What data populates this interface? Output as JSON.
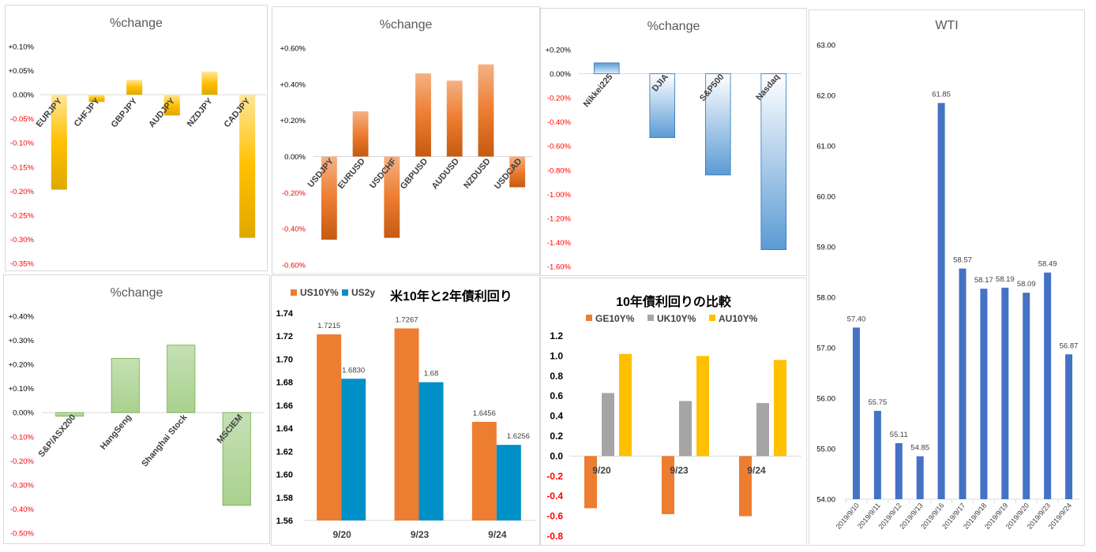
{
  "colors": {
    "gold": "#ffc000",
    "orange": "#ed7d31",
    "blue_grad": "#5b9bd5",
    "green": "#a9d18e",
    "teal": "#0090c8",
    "gray": "#a5a5a5",
    "wti_blue": "#4472c4",
    "neg_tick": "#ff0000"
  },
  "chart_data": [
    {
      "id": "jpy",
      "type": "bar",
      "title": "%change",
      "categories": [
        "EURJPY",
        "CHFJPY",
        "GBPJPY",
        "AUDJPY",
        "NZDJPY",
        "CADJPY"
      ],
      "values": [
        -0.197,
        -0.015,
        0.031,
        -0.043,
        0.048,
        -0.297
      ],
      "ylim": [
        -0.35,
        0.1
      ],
      "yticks": [
        "+0.10%",
        "+0.05%",
        "0.00%",
        "-0.05%",
        "-0.10%",
        "-0.15%",
        "-0.20%",
        "-0.25%",
        "-0.30%",
        "-0.35%"
      ],
      "tick_values": [
        0.1,
        0.05,
        0.0,
        -0.05,
        -0.1,
        -0.15,
        -0.2,
        -0.25,
        -0.3,
        -0.35
      ]
    },
    {
      "id": "usd",
      "type": "bar",
      "title": "%change",
      "categories": [
        "USDJPY",
        "EURUSD",
        "USDCHF",
        "GBPUSD",
        "AUDUSD",
        "NZDUSD",
        "USDCAD"
      ],
      "values": [
        -0.46,
        0.25,
        -0.45,
        0.46,
        0.42,
        0.51,
        -0.17
      ],
      "ylim": [
        -0.6,
        0.6
      ],
      "yticks": [
        "+0.60%",
        "+0.40%",
        "+0.20%",
        "0.00%",
        "-0.20%",
        "-0.40%",
        "-0.60%"
      ],
      "tick_values": [
        0.6,
        0.4,
        0.2,
        0.0,
        -0.2,
        -0.4,
        -0.6
      ]
    },
    {
      "id": "idx",
      "type": "bar",
      "title": "%change",
      "categories": [
        "Nikkei225",
        "DJIA",
        "S&P500",
        "Nasdaq"
      ],
      "values": [
        0.09,
        -0.53,
        -0.84,
        -1.46
      ],
      "ylim": [
        -1.6,
        0.2
      ],
      "yticks": [
        "+0.20%",
        "0.00%",
        "-0.20%",
        "-0.40%",
        "-0.60%",
        "-0.80%",
        "-1.00%",
        "-1.20%",
        "-1.40%",
        "-1.60%"
      ],
      "tick_values": [
        0.2,
        0.0,
        -0.2,
        -0.4,
        -0.6,
        -0.8,
        -1.0,
        -1.2,
        -1.4,
        -1.6
      ]
    },
    {
      "id": "asia",
      "type": "bar",
      "title": "%change",
      "categories": [
        "S&P/ASX200",
        "HangSeng",
        "Shanghai Stock",
        "MSCIEM"
      ],
      "values": [
        -0.015,
        0.225,
        0.28,
        -0.385
      ],
      "ylim": [
        -0.5,
        0.4
      ],
      "yticks": [
        "+0.40%",
        "+0.30%",
        "+0.20%",
        "+0.10%",
        "0.00%",
        "-0.10%",
        "-0.20%",
        "-0.30%",
        "-0.40%",
        "-0.50%"
      ],
      "tick_values": [
        0.4,
        0.3,
        0.2,
        0.1,
        0.0,
        -0.1,
        -0.2,
        -0.3,
        -0.4,
        -0.5
      ]
    },
    {
      "id": "us_yield",
      "type": "bar",
      "title": "米10年と2年債利回り",
      "categories": [
        "9/20",
        "9/23",
        "9/24"
      ],
      "series": [
        {
          "name": "US10Y%",
          "values": [
            1.7215,
            1.7267,
            1.6456
          ],
          "labels": [
            "1.7215",
            "1.7267",
            "1.6456"
          ]
        },
        {
          "name": "US2y",
          "values": [
            1.683,
            1.68,
            1.6256
          ],
          "labels": [
            "1.6830",
            "1.68",
            "1.6256"
          ]
        }
      ],
      "ylim": [
        1.56,
        1.74
      ],
      "yticks": [
        "1.74",
        "1.72",
        "1.70",
        "1.68",
        "1.66",
        "1.64",
        "1.62",
        "1.60",
        "1.58",
        "1.56"
      ],
      "tick_values": [
        1.74,
        1.72,
        1.7,
        1.68,
        1.66,
        1.64,
        1.62,
        1.6,
        1.58,
        1.56
      ]
    },
    {
      "id": "yield10",
      "type": "bar",
      "title": "10年債利回りの比較",
      "categories": [
        "9/20",
        "9/23",
        "9/24"
      ],
      "series": [
        {
          "name": "GE10Y%",
          "values": [
            -0.52,
            -0.58,
            -0.6
          ]
        },
        {
          "name": "UK10Y%",
          "values": [
            0.63,
            0.55,
            0.53
          ]
        },
        {
          "name": "AU10Y%",
          "values": [
            1.02,
            1.0,
            0.96
          ]
        }
      ],
      "ylim": [
        -0.8,
        1.2
      ],
      "yticks": [
        "1.2",
        "1.0",
        "0.8",
        "0.6",
        "0.4",
        "0.2",
        "0.0",
        "-0.2",
        "-0.4",
        "-0.6",
        "-0.8"
      ],
      "tick_values": [
        1.2,
        1.0,
        0.8,
        0.6,
        0.4,
        0.2,
        0.0,
        -0.2,
        -0.4,
        -0.6,
        -0.8
      ]
    },
    {
      "id": "wti",
      "type": "bar",
      "title": "WTI",
      "categories": [
        "2019/9/10",
        "2019/9/11",
        "2019/9/12",
        "2019/9/13",
        "2019/9/16",
        "2019/9/17",
        "2019/9/18",
        "2019/9/19",
        "2019/9/20",
        "2019/9/23",
        "2019/9/24"
      ],
      "values": [
        57.4,
        55.75,
        55.11,
        54.85,
        61.85,
        58.57,
        58.17,
        58.19,
        58.09,
        58.49,
        56.87
      ],
      "labels": [
        "57.40",
        "55.75",
        "55.11",
        "54.85",
        "61.85",
        "58.57",
        "58.17",
        "58.19",
        "58.09",
        "58.49",
        "56.87"
      ],
      "ylim": [
        54.0,
        63.0
      ],
      "yticks": [
        "63.00",
        "62.00",
        "61.00",
        "60.00",
        "59.00",
        "58.00",
        "57.00",
        "56.00",
        "55.00",
        "54.00"
      ],
      "tick_values": [
        63,
        62,
        61,
        60,
        59,
        58,
        57,
        56,
        55,
        54
      ]
    }
  ]
}
